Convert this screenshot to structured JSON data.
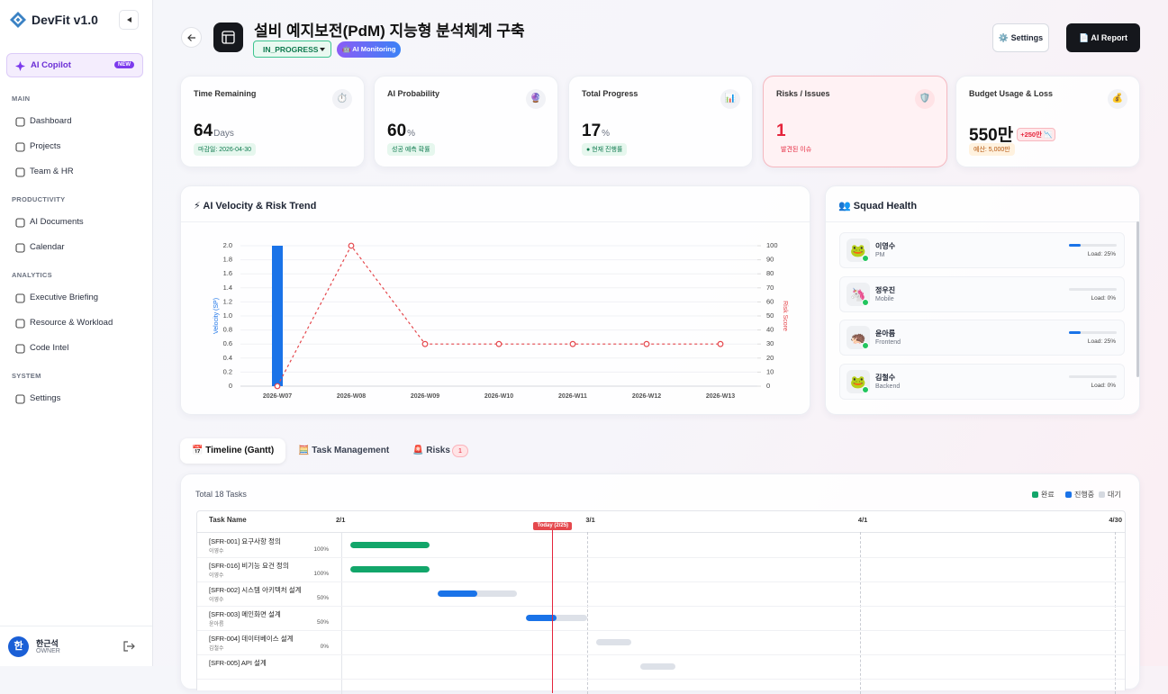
{
  "sidebar": {
    "brand": "DevFit v1.0",
    "copilot": "AI Copilot",
    "copilot_badge": "NEW",
    "sections": [
      {
        "title": "MAIN",
        "items": [
          "Dashboard",
          "Projects",
          "Team & HR"
        ]
      },
      {
        "title": "PRODUCTIVITY",
        "items": [
          "AI Documents",
          "Calendar"
        ]
      },
      {
        "title": "ANALYTICS",
        "items": [
          "Executive Briefing",
          "Resource & Workload",
          "Code Intel"
        ]
      },
      {
        "title": "SYSTEM",
        "items": [
          "Settings"
        ]
      }
    ],
    "user": {
      "initial": "한",
      "name": "한근석",
      "role": "OWNER"
    }
  },
  "header": {
    "title": "설비 예지보전(PdM) 지능형 분석체계 구축",
    "status": "IN_PROGRESS",
    "monitor": "🤖 AI Monitoring",
    "settings": "⚙️ Settings",
    "report": "📄 AI Report"
  },
  "kpis": [
    {
      "label": "Time Remaining",
      "icon": "⏱️",
      "value": 64,
      "unit": "Days",
      "note": "마감일: 2026-04-30"
    },
    {
      "label": "AI Probability",
      "icon": "🔮",
      "value": 60,
      "unit": "%",
      "note": "성공 예측 확률"
    },
    {
      "label": "Total Progress",
      "icon": "📊",
      "value": 17,
      "unit": "%",
      "note": "● 현재 진행률"
    },
    {
      "label": "Risks / Issues",
      "icon": "🛡️",
      "value": 1,
      "note": "발견된 이슈"
    },
    {
      "label": "Budget Usage & Loss",
      "icon": "💰",
      "value": "550만",
      "delta": "+250만 📉",
      "note": "예산: 5,000만"
    }
  ],
  "chart_data": {
    "type": "bar",
    "title": "⚡ AI Velocity & Risk Trend",
    "categories": [
      "2026-W07",
      "2026-W08",
      "2026-W09",
      "2026-W10",
      "2026-W11",
      "2026-W12",
      "2026-W13"
    ],
    "ylabel": "Velocity (SP)",
    "y2label": "Risk Score",
    "series": [
      {
        "type": "bar",
        "color": "#1a73e8",
        "values": [
          2,
          0,
          0,
          0,
          0,
          0,
          0
        ]
      },
      {
        "type": "line",
        "axis": "y2",
        "color": "#e5484d",
        "values": [
          0,
          100,
          30,
          30,
          30,
          30,
          30
        ]
      }
    ],
    "ylim": [
      0,
      2
    ],
    "yticks": [
      0,
      0.2,
      0.4,
      0.6,
      0.8,
      {
        "value": 1,
        "label": "1.0"
      },
      1.2,
      1.4,
      1.6,
      1.8,
      {
        "value": 2,
        "label": "2.0"
      }
    ],
    "y2lim": [
      0,
      100
    ],
    "y2ticks": [
      0,
      10,
      20,
      30,
      40,
      50,
      60,
      70,
      80,
      90,
      100
    ],
    "grid": true
  },
  "squad": {
    "title": "👥 Squad Health",
    "members": [
      {
        "avatar": "🐸",
        "name": "이영수",
        "role": "PM",
        "load": 25,
        "load_label": "Load: 25%"
      },
      {
        "avatar": "🦄",
        "name": "정우진",
        "role": "Mobile",
        "load": 0,
        "load_label": "Load: 0%"
      },
      {
        "avatar": "🦔",
        "name": "윤아름",
        "role": "Frontend",
        "load": 25,
        "load_label": "Load: 25%"
      },
      {
        "avatar": "🐸",
        "name": "김철수",
        "role": "Backend",
        "load": 0,
        "load_label": "Load: 0%"
      }
    ]
  },
  "tabs": {
    "items": [
      "📅 Timeline (Gantt)",
      "🧮 Task Management",
      "🚨 Risks"
    ],
    "risk_count": 1
  },
  "gantt": {
    "total": "Total 18 Tasks",
    "header": "Task Name",
    "legend": [
      {
        "label": "완료",
        "color": "#12a66a"
      },
      {
        "label": "진행중",
        "color": "#1a73e8"
      },
      {
        "label": "대기",
        "color": "#d5d9e0"
      }
    ],
    "xlim": [
      0,
      88
    ],
    "xticks": [
      {
        "value": 0,
        "label": "2/1"
      },
      {
        "value": 28,
        "label": "3/1"
      },
      {
        "value": 59,
        "label": "4/1"
      },
      {
        "value": 88,
        "label": "4/30"
      }
    ],
    "today": {
      "value": 24,
      "label": "Today (2/25)"
    },
    "tasks": [
      {
        "name": "[SFR-001] 요구사항 정의",
        "owner": "이영수",
        "progress": 100,
        "progress_label": "100%",
        "start": 1,
        "end": 10,
        "color": "#12a66a"
      },
      {
        "name": "[SFR-016] 비기능 요건 정의",
        "owner": "이영수",
        "progress": 100,
        "progress_label": "100%",
        "start": 1,
        "end": 10,
        "color": "#12a66a"
      },
      {
        "name": "[SFR-002] 시스템 아키텍처 설계",
        "owner": "이영수",
        "progress": 50,
        "progress_label": "50%",
        "start": 11,
        "end": 20,
        "color": "#1a73e8"
      },
      {
        "name": "[SFR-003] 메인화면 설계",
        "owner": "윤아름",
        "progress": 50,
        "progress_label": "50%",
        "start": 21,
        "end": 28,
        "color": "#1a73e8"
      },
      {
        "name": "[SFR-004] 데이터베이스 설계",
        "owner": "김철수",
        "progress": 0,
        "progress_label": "0%",
        "start": 29,
        "end": 33,
        "color": "#1a73e8"
      },
      {
        "name": "[SFR-005] API 설계",
        "progress": 0,
        "start": 34,
        "end": 38,
        "color": "#1a73e8"
      }
    ]
  }
}
